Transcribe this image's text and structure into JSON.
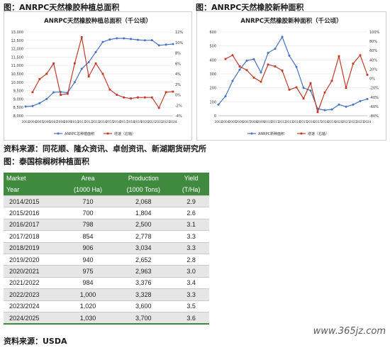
{
  "captions": {
    "left": "图：ANRPC天然橡胶种植总面积",
    "right": "图：ANRPC天然橡胶新种面积",
    "source1": "资料来源：同花顺、隆众资讯、卓创资讯、新湖期货研究所",
    "table_title": "图：泰国棕榈树种植面积",
    "source2": "资料来源：USDA"
  },
  "watermark": "www.365jz.com",
  "chart_data": [
    {
      "type": "line",
      "title": "ANRPC天然橡胶种植总面积（千公顷）",
      "categories": [
        "2003",
        "2004",
        "2005",
        "2006",
        "2007",
        "2008",
        "2009",
        "2010",
        "2011",
        "2012",
        "2013",
        "2014",
        "2015",
        "2016",
        "2017",
        "2018",
        "2019",
        "2020",
        "2021",
        "2022",
        "2023",
        "2024"
      ],
      "series": [
        {
          "name": "ANRPC总种植面积",
          "axis": "left",
          "color": "#4472c4",
          "values": [
            8550,
            8580,
            8750,
            9000,
            9400,
            9420,
            9380,
            10000,
            10800,
            11200,
            11800,
            12400,
            12550,
            12620,
            12620,
            12580,
            12530,
            12500,
            12510,
            12200,
            12240,
            12280
          ]
        },
        {
          "name": "增速（右轴）",
          "axis": "right",
          "color": "#c0392b",
          "values": [
            null,
            0.5,
            3.0,
            4.0,
            6.0,
            0.0,
            0.2,
            6.0,
            11.0,
            3.5,
            6.0,
            4.0,
            1.0,
            0.0,
            -0.5,
            -0.7,
            -0.5,
            -0.5,
            -0.5,
            -2.5,
            0.5,
            0.6
          ]
        }
      ],
      "y_left": {
        "min": 8000,
        "max": 13000,
        "ticks": [
          "8,000",
          "8,500",
          "9,000",
          "9,500",
          "10,000",
          "10,500",
          "11,000",
          "11,500",
          "12,000",
          "12,500",
          "13,000"
        ]
      },
      "y_right": {
        "min": -4,
        "max": 12,
        "ticks": [
          "-4%",
          "-2%",
          "0%",
          "2%",
          "4%",
          "6%",
          "8%",
          "10%",
          "12%"
        ]
      },
      "legend": [
        "ANRPC总种植面积",
        "增速（右轴）"
      ]
    },
    {
      "type": "line",
      "title": "ANRPC天然橡胶新种面积（千公顷）",
      "categories": [
        "2003",
        "2004",
        "2005",
        "2006",
        "2007",
        "2008",
        "2009",
        "2010",
        "2011",
        "2012",
        "2013",
        "2014",
        "2015",
        "2016",
        "2017",
        "2018",
        "2019",
        "2020",
        "2021",
        "2022",
        "2023",
        "2024"
      ],
      "series": [
        {
          "name": "ANRPC新种面积",
          "axis": "left",
          "color": "#4472c4",
          "values": [
            80,
            140,
            250,
            330,
            395,
            405,
            310,
            450,
            480,
            565,
            430,
            350,
            200,
            180,
            50,
            40,
            45,
            80,
            65,
            80,
            105,
            120
          ]
        },
        {
          "name": "增速（右轴）",
          "axis": "right",
          "color": "#c0392b",
          "values": [
            null,
            42,
            50,
            26,
            18,
            2,
            -7,
            30,
            26,
            17,
            -24,
            -19,
            -43,
            -10,
            -72,
            -30,
            -5,
            48,
            -20,
            32,
            50,
            8
          ]
        }
      ],
      "y_left": {
        "min": 0,
        "max": 600,
        "ticks": [
          "0",
          "100",
          "200",
          "300",
          "400",
          "500",
          "600"
        ]
      },
      "y_right": {
        "min": -80,
        "max": 100,
        "ticks": [
          "-80%",
          "-60%",
          "-40%",
          "-20%",
          "0%",
          "20%",
          "40%",
          "60%",
          "80%",
          "100%"
        ]
      },
      "legend": [
        "ANRPC新种面积",
        "增速（右轴）"
      ]
    },
    {
      "type": "table",
      "columns": [
        {
          "line1": "Market",
          "line2": "Year"
        },
        {
          "line1": "Area",
          "line2": "(1000 Ha)"
        },
        {
          "line1": "Production",
          "line2": "(1000 Tons)"
        },
        {
          "line1": "Yield",
          "line2": "(T/Ha)"
        }
      ],
      "rows": [
        [
          "2014/2015",
          "710",
          "2,068",
          "2.9"
        ],
        [
          "2015/2016",
          "700",
          "1,804",
          "2.6"
        ],
        [
          "2016/2017",
          "798",
          "2,500",
          "3.1"
        ],
        [
          "2017/2018",
          "854",
          "2,778",
          "3.3"
        ],
        [
          "2018/2019",
          "906",
          "3,034",
          "3.3"
        ],
        [
          "2019/2020",
          "940",
          "2,652",
          "2.8"
        ],
        [
          "2020/2021",
          "975",
          "2,963",
          "3.0"
        ],
        [
          "2021/2022",
          "984",
          "3,376",
          "3.4"
        ],
        [
          "2022/2023",
          "1,000",
          "3,328",
          "3.3"
        ],
        [
          "2023/2024",
          "1,020",
          "3,600",
          "3.5"
        ],
        [
          "2024/2025",
          "1,030",
          "3,700",
          "3.6"
        ]
      ]
    }
  ]
}
